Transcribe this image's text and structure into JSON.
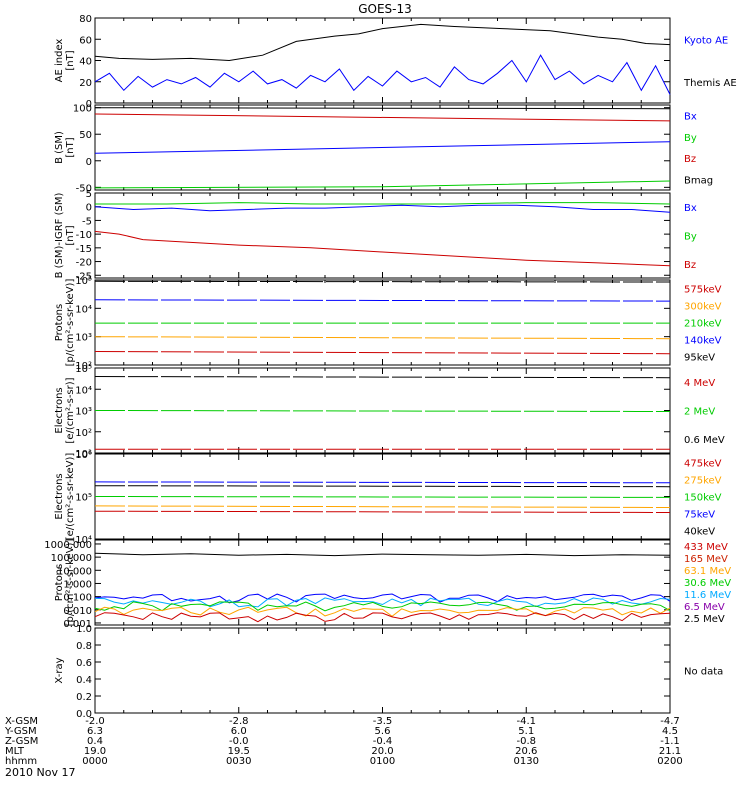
{
  "title": "GOES-13",
  "date": "2010 Nov 17",
  "chart_data": [
    {
      "type": "line",
      "ylabel": "AE index\n[nT]",
      "ylim": [
        0,
        80
      ],
      "yticks": [
        {
          "v": 80,
          "label": "80"
        },
        {
          "v": 60,
          "label": "60"
        },
        {
          "v": 40,
          "label": "40"
        },
        {
          "v": 20,
          "label": "20"
        },
        {
          "v": 0,
          "label": "0"
        }
      ],
      "series": [
        {
          "name": "Kyoto AE",
          "color": "#0000ff",
          "noisy": false,
          "labelOnly": true,
          "x": [
            0,
            5,
            12,
            20,
            28,
            35,
            42,
            50,
            55,
            60,
            68,
            75,
            85,
            95,
            105,
            110,
            115,
            120
          ],
          "y": [
            44,
            42,
            41,
            42,
            40,
            45,
            58,
            63,
            65,
            70,
            74,
            72,
            70,
            68,
            62,
            60,
            56,
            55
          ]
        },
        {
          "name": "Themis AE",
          "color": "#000000",
          "noisy": false,
          "labelOnly": true,
          "x": [
            0,
            6,
            12,
            20,
            28,
            35,
            42,
            50,
            58,
            65,
            72,
            80,
            88,
            95,
            102,
            108,
            114,
            120
          ],
          "y": [
            20,
            25,
            15,
            25,
            18,
            28,
            18,
            32,
            15,
            25,
            20,
            32,
            18,
            42,
            20,
            38,
            20,
            5
          ]
        },
        {
          "name": "",
          "color": "#000000",
          "noisy": false,
          "x": [
            0,
            5,
            12,
            20,
            28,
            35,
            42,
            50,
            55,
            60,
            68,
            75,
            85,
            95,
            105,
            110,
            115,
            120
          ],
          "y": [
            44,
            42,
            41,
            42,
            40,
            45,
            58,
            63,
            65,
            70,
            74,
            72,
            70,
            68,
            62,
            60,
            56,
            55
          ]
        },
        {
          "name": "",
          "color": "#0000ff",
          "noisy": false,
          "x": [
            0,
            3,
            6,
            9,
            12,
            15,
            18,
            21,
            24,
            27,
            30,
            33,
            36,
            39,
            42,
            45,
            48,
            51,
            54,
            57,
            60,
            63,
            66,
            69,
            72,
            75,
            78,
            81,
            84,
            87,
            90,
            93,
            96,
            99,
            102,
            105,
            108,
            111,
            114,
            117,
            120
          ],
          "y": [
            20,
            28,
            12,
            25,
            15,
            22,
            18,
            24,
            15,
            28,
            20,
            30,
            18,
            22,
            14,
            26,
            20,
            32,
            12,
            25,
            16,
            30,
            20,
            24,
            15,
            34,
            22,
            18,
            28,
            40,
            20,
            45,
            22,
            30,
            18,
            26,
            20,
            38,
            12,
            35,
            8
          ]
        }
      ]
    },
    {
      "type": "line",
      "ylabel": "B (SM)\n[nT]",
      "ylim": [
        -55,
        105
      ],
      "yticks": [
        {
          "v": 100,
          "label": "100"
        },
        {
          "v": 50,
          "label": "50"
        },
        {
          "v": 0,
          "label": "0"
        },
        {
          "v": -50,
          "label": "-50"
        }
      ],
      "series": [
        {
          "name": "Bx",
          "color": "#0000ff",
          "noisy": false,
          "x": [
            0,
            120
          ],
          "y": [
            14,
            36
          ]
        },
        {
          "name": "By",
          "color": "#00cc00",
          "noisy": false,
          "x": [
            0,
            60,
            120
          ],
          "y": [
            -51,
            -49,
            -38
          ]
        },
        {
          "name": "Bz",
          "color": "#cc0000",
          "noisy": false,
          "x": [
            0,
            120
          ],
          "y": [
            88,
            75
          ]
        },
        {
          "name": "Bmag",
          "color": "#000000",
          "noisy": false,
          "x": [
            0,
            120
          ],
          "y": [
            100,
            98
          ]
        }
      ]
    },
    {
      "type": "line",
      "ylabel": "B (SM)-IGRF (SM)\n[nT]",
      "ylim": [
        -26,
        5
      ],
      "yticks": [
        {
          "v": 5,
          "label": "5"
        },
        {
          "v": 0,
          "label": "0"
        },
        {
          "v": -5,
          "label": "-5"
        },
        {
          "v": -10,
          "label": "-10"
        },
        {
          "v": -15,
          "label": "-15"
        },
        {
          "v": -20,
          "label": "-20"
        },
        {
          "v": -25,
          "label": "-25"
        }
      ],
      "series": [
        {
          "name": "Bx",
          "color": "#0000ff",
          "noisy": false,
          "x": [
            0,
            8,
            16,
            24,
            32,
            40,
            48,
            56,
            64,
            72,
            80,
            88,
            96,
            104,
            112,
            120
          ],
          "y": [
            0,
            -1,
            -0.5,
            -1.5,
            -1,
            -0.5,
            -0.5,
            0,
            0.5,
            0,
            0.5,
            0.5,
            0,
            -1,
            -1,
            -2
          ]
        },
        {
          "name": "By",
          "color": "#00cc00",
          "noisy": false,
          "x": [
            0,
            15,
            30,
            45,
            60,
            75,
            90,
            105,
            120
          ],
          "y": [
            1,
            1,
            1.5,
            1,
            1,
            1,
            1.5,
            1.5,
            1
          ]
        },
        {
          "name": "Bz",
          "color": "#cc0000",
          "noisy": false,
          "x": [
            0,
            5,
            10,
            20,
            30,
            45,
            60,
            75,
            90,
            105,
            120
          ],
          "y": [
            -9,
            -10,
            -12,
            -13,
            -14,
            -15,
            -16.5,
            -18,
            -19.5,
            -20.5,
            -21.5
          ]
        }
      ]
    },
    {
      "type": "line",
      "ylabel": "Protons\n[p/(cm²-s-sr-keV)]",
      "scale": "log",
      "ylim": [
        100,
        100000
      ],
      "yticks": [
        {
          "v": 100,
          "label": "10²"
        },
        {
          "v": 1000,
          "label": "10³"
        },
        {
          "v": 10000,
          "label": "10⁴"
        },
        {
          "v": 100000,
          "label": "10⁵"
        }
      ],
      "series": [
        {
          "name": "575keV",
          "color": "#cc0000",
          "noisy": false
        },
        {
          "name": "300keV",
          "color": "#ffa500",
          "noisy": false
        },
        {
          "name": "210keV",
          "color": "#00cc00",
          "noisy": false
        },
        {
          "name": "140keV",
          "color": "#0000ff",
          "noisy": false
        },
        {
          "name": "95keV",
          "color": "#000000",
          "noisy": false
        }
      ],
      "lines": [
        {
          "color": "#000000",
          "x": [
            0,
            120
          ],
          "y": [
            90000,
            85000
          ]
        },
        {
          "color": "#0000ff",
          "x": [
            0,
            120
          ],
          "y": [
            20000,
            18000
          ]
        },
        {
          "color": "#00cc00",
          "x": [
            0,
            120
          ],
          "y": [
            3000,
            3000
          ]
        },
        {
          "color": "#ffa500",
          "x": [
            0,
            120
          ],
          "y": [
            1000,
            850
          ]
        },
        {
          "color": "#cc0000",
          "x": [
            0,
            120
          ],
          "y": [
            300,
            250
          ]
        }
      ]
    },
    {
      "type": "line",
      "ylabel": "Electrons\n[e/(cm²-s-sr)]",
      "scale": "log",
      "ylim": [
        10,
        100000
      ],
      "yticks": [
        {
          "v": 10,
          "label": "10¹"
        },
        {
          "v": 100,
          "label": "10²"
        },
        {
          "v": 1000,
          "label": "10³"
        },
        {
          "v": 10000,
          "label": "10⁴"
        },
        {
          "v": 100000,
          "label": "10⁵"
        }
      ],
      "series": [
        {
          "name": "4 MeV",
          "color": "#cc0000",
          "noisy": false
        },
        {
          "name": "2 MeV",
          "color": "#00cc00",
          "noisy": false
        },
        {
          "name": "0.6 MeV",
          "color": "#000000",
          "noisy": false
        }
      ],
      "lines": [
        {
          "color": "#000000",
          "x": [
            0,
            120
          ],
          "y": [
            40000,
            35000
          ]
        },
        {
          "color": "#00cc00",
          "x": [
            0,
            120
          ],
          "y": [
            1000,
            900
          ]
        },
        {
          "color": "#cc0000",
          "x": [
            0,
            120
          ],
          "y": [
            15,
            15
          ]
        }
      ]
    },
    {
      "type": "line",
      "ylabel": "Electrons\n[e/(cm²-s-sr-keV)]",
      "scale": "log",
      "ylim": [
        10000,
        1000000
      ],
      "yticks": [
        {
          "v": 10000,
          "label": "10⁴"
        },
        {
          "v": 100000,
          "label": "10⁵"
        },
        {
          "v": 1000000,
          "label": "10⁶"
        }
      ],
      "series": [
        {
          "name": "475keV",
          "color": "#cc0000",
          "noisy": false
        },
        {
          "name": "275keV",
          "color": "#ffa500",
          "noisy": false
        },
        {
          "name": "150keV",
          "color": "#00cc00",
          "noisy": false
        },
        {
          "name": "75keV",
          "color": "#0000ff",
          "noisy": false
        },
        {
          "name": "40keV",
          "color": "#000000",
          "noisy": false
        }
      ],
      "lines": [
        {
          "color": "#0000ff",
          "x": [
            0,
            120
          ],
          "y": [
            220000,
            210000
          ]
        },
        {
          "color": "#000000",
          "x": [
            0,
            120
          ],
          "y": [
            180000,
            170000
          ]
        },
        {
          "color": "#00cc00",
          "x": [
            0,
            120
          ],
          "y": [
            100000,
            95000
          ]
        },
        {
          "color": "#ffa500",
          "x": [
            0,
            120
          ],
          "y": [
            60000,
            55000
          ]
        },
        {
          "color": "#cc0000",
          "x": [
            0,
            120
          ],
          "y": [
            45000,
            42000
          ]
        }
      ]
    },
    {
      "type": "line",
      "ylabel": "Protons\n[p/(cm²-s-sr-keV)]",
      "scale": "log",
      "ylim": [
        0.0007,
        2000
      ],
      "yticks": [
        {
          "v": 1000,
          "label": "1000.000"
        },
        {
          "v": 100,
          "label": "100.000"
        },
        {
          "v": 10,
          "label": "10.000"
        },
        {
          "v": 1,
          "label": "1.000"
        },
        {
          "v": 0.1,
          "label": "0.100"
        },
        {
          "v": 0.01,
          "label": "0.010"
        },
        {
          "v": 0.001,
          "label": "0.001"
        }
      ],
      "series": [
        {
          "name": "433 MeV",
          "color": "#cc0000"
        },
        {
          "name": "165 MeV",
          "color": "#cc2200"
        },
        {
          "name": "63.1 MeV",
          "color": "#ffa500"
        },
        {
          "name": "30.6 MeV",
          "color": "#00cc00"
        },
        {
          "name": "11.6 MeV",
          "color": "#00aaff"
        },
        {
          "name": "6.5 MeV",
          "color": "#8800aa"
        },
        {
          "name": "2.5 MeV",
          "color": "#000000"
        }
      ],
      "lines": [
        {
          "color": "#000000",
          "x": [
            0,
            10,
            20,
            30,
            40,
            50,
            60,
            70,
            80,
            90,
            100,
            110,
            120
          ],
          "y": [
            200,
            150,
            180,
            140,
            160,
            130,
            170,
            150,
            140,
            160,
            130,
            150,
            140
          ]
        },
        {
          "color": "#0000ff",
          "noisy": true,
          "base": 0.08
        },
        {
          "color": "#00aaff",
          "noisy": true,
          "base": 0.04
        },
        {
          "color": "#00cc00",
          "noisy": true,
          "base": 0.02
        },
        {
          "color": "#ffa500",
          "noisy": true,
          "base": 0.008
        },
        {
          "color": "#cc0000",
          "noisy": true,
          "base": 0.003
        }
      ]
    },
    {
      "type": "line",
      "ylabel": "X-ray",
      "ylim": [
        0,
        1
      ],
      "yticks": [
        {
          "v": 1,
          "label": "1.0"
        },
        {
          "v": 0.8,
          "label": "0.8"
        },
        {
          "v": 0.6,
          "label": "0.6"
        },
        {
          "v": 0.4,
          "label": "0.4"
        },
        {
          "v": 0.2,
          "label": "0.2"
        },
        {
          "v": 0,
          "label": "0.0"
        }
      ],
      "series": [],
      "note": "No data"
    }
  ],
  "footer": {
    "rows": [
      {
        "label": "X-GSM",
        "values": [
          "-2.0",
          "-2.8",
          "-3.5",
          "-4.1",
          "-4.7"
        ]
      },
      {
        "label": "Y-GSM",
        "values": [
          "6.3",
          "6.0",
          "5.6",
          "5.1",
          "4.5"
        ]
      },
      {
        "label": "Z-GSM",
        "values": [
          "0.4",
          "-0.0",
          "-0.4",
          "-0.8",
          "-1.1"
        ]
      },
      {
        "label": "MLT",
        "values": [
          "19.0",
          "19.5",
          "20.0",
          "20.6",
          "21.1"
        ]
      },
      {
        "label": "hhmm",
        "values": [
          "0000",
          "0030",
          "0100",
          "0130",
          "0200"
        ]
      }
    ]
  }
}
